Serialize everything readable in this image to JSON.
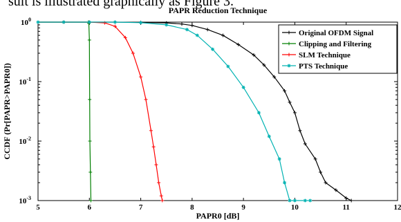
{
  "page": {
    "header_text": "sult is illustrated graphically as Figure 3."
  },
  "chart_data": {
    "type": "line",
    "title": "PAPR Reduction Technique",
    "xlabel": "PAPR0 [dB]",
    "ylabel": "CCDF (Pr[PAPR>PAPR0])",
    "xlim": [
      5,
      12
    ],
    "ylim": [
      0.001,
      1
    ],
    "yscale": "log",
    "grid": false,
    "legend_position": "top-right",
    "x_ticks": [
      5,
      6,
      7,
      8,
      9,
      10,
      11,
      12
    ],
    "x_tick_labels": [
      "5",
      "6",
      "7",
      "8",
      "9",
      "10",
      "11",
      "12"
    ],
    "y_ticks": [
      0.001,
      0.01,
      0.1,
      1
    ],
    "y_tick_labels": [
      "10^-3",
      "10^-2",
      "10^-1",
      "10^0"
    ],
    "series": [
      {
        "name": "Original OFDM Signal",
        "color": "#000000",
        "marker": "plus",
        "x": [
          5.0,
          5.5,
          6.0,
          6.5,
          7.0,
          7.5,
          7.8,
          8.0,
          8.3,
          8.6,
          8.9,
          9.2,
          9.4,
          9.6,
          9.8,
          9.9,
          10.0,
          10.1,
          10.2,
          10.4,
          10.5,
          10.6,
          10.8,
          11.0,
          11.1
        ],
        "y": [
          1.0,
          1.0,
          1.0,
          1.0,
          0.99,
          0.97,
          0.93,
          0.88,
          0.75,
          0.6,
          0.42,
          0.28,
          0.19,
          0.12,
          0.07,
          0.045,
          0.03,
          0.015,
          0.009,
          0.005,
          0.003,
          0.002,
          0.0015,
          0.0011,
          0.001
        ]
      },
      {
        "name": "Clipping and Filtering",
        "color": "#007f00",
        "marker": "plus",
        "x": [
          5.0,
          5.5,
          5.98,
          5.99,
          6.0,
          6.005,
          6.01,
          6.02,
          6.03
        ],
        "y": [
          1.0,
          1.0,
          1.0,
          0.95,
          0.5,
          0.05,
          0.01,
          0.003,
          0.001
        ]
      },
      {
        "name": "SLM Technique",
        "color": "#ff0000",
        "marker": "plus",
        "x": [
          5.0,
          5.5,
          6.0,
          6.3,
          6.5,
          6.7,
          6.85,
          7.0,
          7.1,
          7.2,
          7.25,
          7.3,
          7.35,
          7.4,
          7.42
        ],
        "y": [
          1.0,
          1.0,
          1.0,
          0.97,
          0.85,
          0.55,
          0.3,
          0.12,
          0.05,
          0.015,
          0.008,
          0.004,
          0.002,
          0.0012,
          0.001
        ]
      },
      {
        "name": "PTS Technique",
        "color": "#00b2b2",
        "marker": "star",
        "x": [
          5.0,
          5.5,
          6.0,
          6.5,
          7.0,
          7.5,
          7.9,
          8.1,
          8.4,
          8.7,
          9.0,
          9.3,
          9.5,
          9.7,
          9.8,
          9.9,
          10.0,
          10.2,
          10.3
        ],
        "y": [
          1.0,
          1.0,
          1.0,
          1.0,
          0.98,
          0.9,
          0.75,
          0.6,
          0.35,
          0.18,
          0.08,
          0.03,
          0.012,
          0.005,
          0.002,
          0.001,
          0.001,
          0.001,
          0.001
        ]
      }
    ]
  }
}
